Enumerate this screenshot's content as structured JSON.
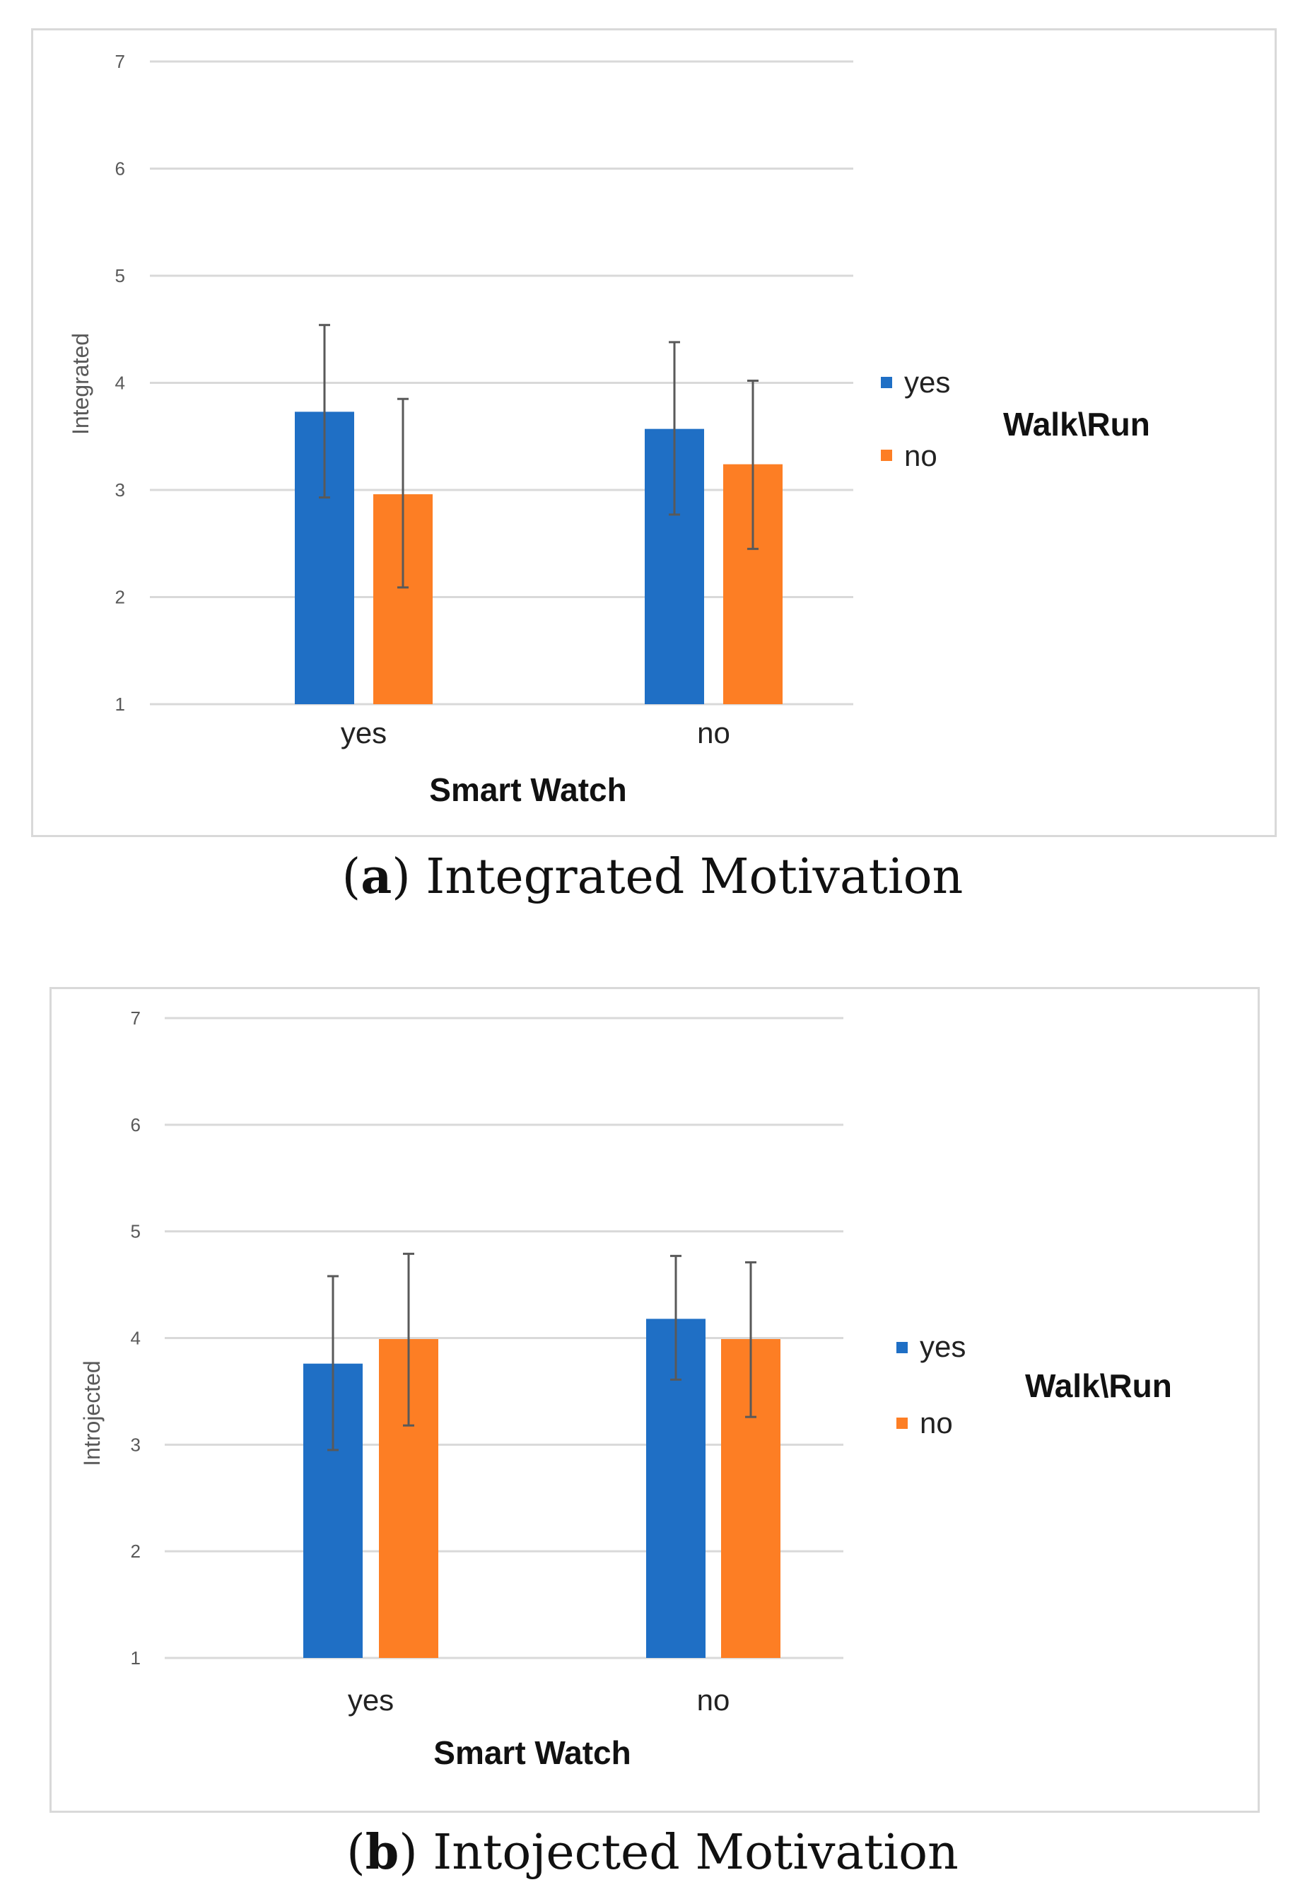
{
  "charts": {
    "a": {
      "caption": {
        "letter": "a",
        "text": "Integrated Motivation"
      }
    },
    "b": {
      "caption": {
        "letter": "b",
        "text": "Intojected Motivation"
      }
    }
  },
  "chart_data": [
    {
      "type": "bar",
      "title": "",
      "xlabel": "Smart Watch",
      "ylabel": "Integrated",
      "ylim": [
        1,
        7
      ],
      "yticks": [
        1,
        2,
        3,
        4,
        5,
        6,
        7
      ],
      "grid": true,
      "categories": [
        "yes",
        "no"
      ],
      "legend_title": "Walk\\Run",
      "legend_position": "right",
      "series": [
        {
          "name": "yes",
          "color": "#1f6fc5",
          "values": [
            3.73,
            3.57
          ],
          "error_low": [
            2.93,
            2.77
          ],
          "error_high": [
            4.54,
            4.38
          ]
        },
        {
          "name": "no",
          "color": "#fd7e24",
          "values": [
            2.96,
            3.24
          ],
          "error_low": [
            2.09,
            2.45
          ],
          "error_high": [
            3.85,
            4.02
          ]
        }
      ]
    },
    {
      "type": "bar",
      "title": "",
      "xlabel": "Smart Watch",
      "ylabel": "Introjected",
      "ylim": [
        1,
        7
      ],
      "yticks": [
        1,
        2,
        3,
        4,
        5,
        6,
        7
      ],
      "grid": true,
      "categories": [
        "yes",
        "no"
      ],
      "legend_title": "Walk\\Run",
      "legend_position": "right",
      "series": [
        {
          "name": "yes",
          "color": "#1f6fc5",
          "values": [
            3.76,
            4.18
          ],
          "error_low": [
            2.95,
            3.61
          ],
          "error_high": [
            4.58,
            4.77
          ]
        },
        {
          "name": "no",
          "color": "#fd7e24",
          "values": [
            3.99,
            3.99
          ],
          "error_low": [
            3.18,
            3.26
          ],
          "error_high": [
            4.79,
            4.71
          ]
        }
      ]
    }
  ]
}
